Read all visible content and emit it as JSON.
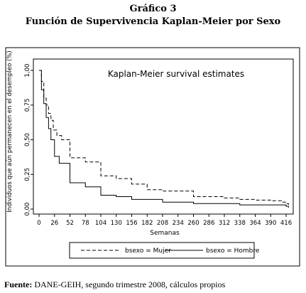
{
  "figure": {
    "number": "Gráfico 3",
    "caption": "Función de Supervivencia Kaplan-Meier por Sexo",
    "source_label": "Fuente:",
    "source_text": "DANE-GEIH, segundo trimestre 2008, cálculos propios"
  },
  "chart_data": {
    "type": "line",
    "title": "Kaplan-Meier survival estimates",
    "xlabel": "Semanas",
    "ylabel": "Individuos que aún permanecen en el desempleo (%)",
    "xlim": [
      0,
      428
    ],
    "ylim": [
      0,
      1
    ],
    "x_ticks": [
      "0",
      "26",
      "52",
      "78",
      "104",
      "130",
      "156",
      "182",
      "208",
      "234",
      "260",
      "286",
      "312",
      "338",
      "364",
      "390",
      "416"
    ],
    "y_ticks": [
      "0,00",
      "0,25",
      "0,50",
      "0,75",
      "1,00"
    ],
    "grid": false,
    "legend_position": "bottom",
    "series": [
      {
        "name": "bsexo = Mujer",
        "style": "dashed",
        "color": "#000000",
        "points": [
          [
            0,
            1.0
          ],
          [
            4,
            0.92
          ],
          [
            8,
            0.8
          ],
          [
            12,
            0.75
          ],
          [
            16,
            0.69
          ],
          [
            20,
            0.64
          ],
          [
            24,
            0.57
          ],
          [
            30,
            0.53
          ],
          [
            38,
            0.5
          ],
          [
            52,
            0.37
          ],
          [
            78,
            0.34
          ],
          [
            104,
            0.24
          ],
          [
            130,
            0.22
          ],
          [
            156,
            0.18
          ],
          [
            182,
            0.14
          ],
          [
            208,
            0.13
          ],
          [
            260,
            0.09
          ],
          [
            312,
            0.08
          ],
          [
            338,
            0.07
          ],
          [
            364,
            0.065
          ],
          [
            390,
            0.06
          ],
          [
            408,
            0.05
          ],
          [
            416,
            0.04
          ],
          [
            420,
            0.03
          ]
        ]
      },
      {
        "name": "bsexo = Hombre",
        "style": "solid",
        "color": "#000000",
        "points": [
          [
            0,
            1.0
          ],
          [
            4,
            0.86
          ],
          [
            8,
            0.76
          ],
          [
            12,
            0.66
          ],
          [
            16,
            0.58
          ],
          [
            20,
            0.5
          ],
          [
            26,
            0.38
          ],
          [
            34,
            0.33
          ],
          [
            52,
            0.19
          ],
          [
            78,
            0.16
          ],
          [
            104,
            0.1
          ],
          [
            130,
            0.09
          ],
          [
            156,
            0.07
          ],
          [
            208,
            0.05
          ],
          [
            260,
            0.04
          ],
          [
            338,
            0.03
          ],
          [
            416,
            0.02
          ],
          [
            420,
            0.01
          ]
        ]
      }
    ]
  }
}
